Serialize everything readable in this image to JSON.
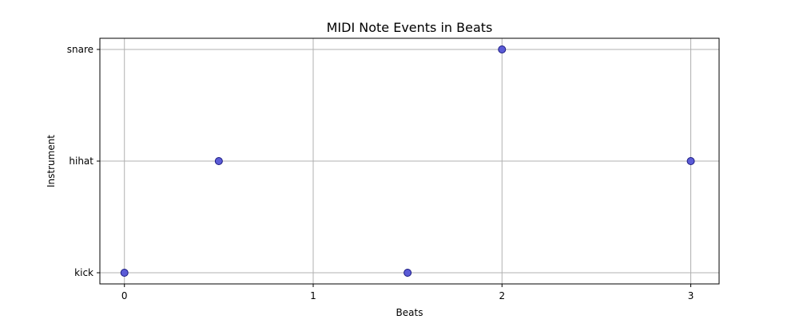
{
  "chart_data": {
    "type": "scatter",
    "title": "MIDI Note Events in Beats",
    "xlabel": "Beats",
    "ylabel": "Instrument",
    "categories": [
      "kick",
      "hihat",
      "snare"
    ],
    "x_ticks": [
      "0",
      "1",
      "2",
      "3"
    ],
    "xlim": [
      -0.13,
      3.15
    ],
    "grid": true,
    "legend": "none",
    "marker_color": "#5b5bd6",
    "marker_edge_color": "#1a1a80",
    "points": [
      {
        "x": 0,
        "y": "kick"
      },
      {
        "x": 0.5,
        "y": "hihat"
      },
      {
        "x": 1.5,
        "y": "kick"
      },
      {
        "x": 2,
        "y": "snare"
      },
      {
        "x": 3,
        "y": "hihat"
      }
    ]
  }
}
